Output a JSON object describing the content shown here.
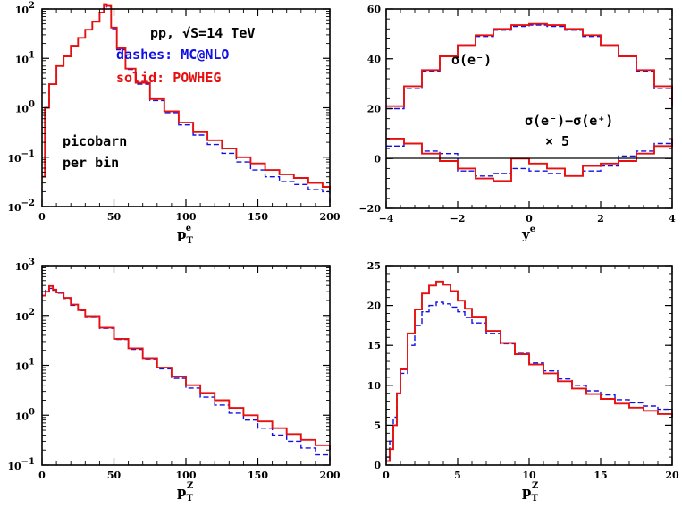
{
  "colors": {
    "mcatnlo": "#1010e6",
    "powheg": "#e61010",
    "axis": "#000000"
  },
  "panels": {
    "p1": {
      "xaxis": {
        "label": "p",
        "sub": "T",
        "sup": "e"
      },
      "legend": {
        "line1": "pp, √S=14 TeV",
        "line2": "dashes: MC@NLO",
        "line3": "solid: POWHEG"
      },
      "note": {
        "line1": "picobarn",
        "line2": "per bin"
      }
    },
    "p2": {
      "xaxis": {
        "label": "y",
        "sup": "e"
      },
      "ann1": "σ(e⁻)",
      "ann2": "σ(e⁻)−σ(e⁺)",
      "ann3": "× 5"
    },
    "p3": {
      "xaxis": {
        "label": "p",
        "sub": "T",
        "sup": "Z"
      }
    },
    "p4": {
      "xaxis": {
        "label": "p",
        "sub": "T",
        "sup": "Z"
      }
    }
  },
  "chart_data": [
    {
      "type": "line",
      "panel": "top-left",
      "xlabel": "p_T^e",
      "xlim": [
        0,
        200
      ],
      "ylim": [
        0.01,
        100
      ],
      "yscale": "log",
      "xticks": [
        0,
        50,
        100,
        150,
        200
      ],
      "ytick_labels": [
        {
          "v": 0.01,
          "base": "10",
          "exp": "−2"
        },
        {
          "v": 0.1,
          "base": "10",
          "exp": "−1"
        },
        {
          "v": 1,
          "base": "10",
          "exp": "0"
        },
        {
          "v": 10,
          "base": "10",
          "exp": "1"
        },
        {
          "v": 100,
          "base": "10",
          "exp": "2"
        }
      ],
      "series": [
        {
          "name": "MC@NLO",
          "style": "dashed",
          "x": [
            0,
            2,
            5,
            10,
            15,
            20,
            25,
            30,
            35,
            40,
            43,
            45,
            48,
            52,
            58,
            65,
            75,
            85,
            95,
            105,
            115,
            125,
            135,
            145,
            155,
            165,
            175,
            185,
            195,
            200
          ],
          "y": [
            0.04,
            1.0,
            3,
            7,
            11,
            18,
            26,
            38,
            55,
            85,
            120,
            110,
            40,
            15,
            6,
            3,
            1.4,
            0.8,
            0.45,
            0.28,
            0.18,
            0.12,
            0.08,
            0.055,
            0.04,
            0.032,
            0.028,
            0.022,
            0.02,
            0.012
          ]
        },
        {
          "name": "POWHEG",
          "style": "solid",
          "x": [
            0,
            2,
            5,
            10,
            15,
            20,
            25,
            30,
            35,
            40,
            43,
            45,
            48,
            52,
            58,
            65,
            75,
            85,
            95,
            105,
            115,
            125,
            135,
            145,
            155,
            165,
            175,
            185,
            195,
            200
          ],
          "y": [
            0.04,
            1.0,
            3,
            7,
            11,
            18,
            26,
            38,
            55,
            85,
            125,
            115,
            42,
            16,
            6.2,
            3.2,
            1.5,
            0.85,
            0.5,
            0.32,
            0.22,
            0.15,
            0.1,
            0.075,
            0.055,
            0.045,
            0.038,
            0.03,
            0.025,
            0.022
          ]
        }
      ]
    },
    {
      "type": "line",
      "panel": "top-right",
      "xlabel": "y^e",
      "xlim": [
        -4,
        4
      ],
      "ylim": [
        -20,
        60
      ],
      "xticks": [
        -4,
        -2,
        0,
        2,
        4
      ],
      "yticks": [
        -20,
        0,
        20,
        40,
        60
      ],
      "xtick_labels": [
        "−4",
        "−2",
        "0",
        "2",
        "4"
      ],
      "ytick_labels": [
        "−20",
        "0",
        "20",
        "40",
        "60"
      ],
      "hline": 0,
      "series": [
        {
          "name": "MC@NLO",
          "style": "dashed",
          "quantity": "σ(e⁻)",
          "x": [
            -4,
            -3.5,
            -3,
            -2.5,
            -2,
            -1.5,
            -1,
            -0.5,
            0,
            0.5,
            1,
            1.5,
            2,
            2.5,
            3,
            3.5,
            4
          ],
          "y": [
            20,
            28,
            35,
            41,
            45.5,
            49,
            51.5,
            53,
            53.5,
            53,
            51.5,
            49,
            45.5,
            41,
            35,
            28,
            20
          ]
        },
        {
          "name": "POWHEG",
          "style": "solid",
          "quantity": "σ(e⁻)",
          "x": [
            -4,
            -3.5,
            -3,
            -2.5,
            -2,
            -1.5,
            -1,
            -0.5,
            0,
            0.5,
            1,
            1.5,
            2,
            2.5,
            3,
            3.5,
            4
          ],
          "y": [
            21,
            29,
            35.5,
            41,
            45.5,
            49.5,
            52,
            53.5,
            54,
            53.5,
            52,
            49.5,
            45.5,
            41,
            35.5,
            29,
            21
          ]
        },
        {
          "name": "MC@NLO",
          "style": "dashed",
          "quantity": "σ(e⁻)−σ(e⁺) × 5",
          "x": [
            -4,
            -3.5,
            -3,
            -2.5,
            -2,
            -1.5,
            -1,
            -0.5,
            0,
            0.5,
            1,
            1.5,
            2,
            2.5,
            3,
            3.5,
            4
          ],
          "y": [
            5,
            6,
            3,
            2,
            -5,
            -7,
            -6,
            -4,
            -5,
            -6,
            -7,
            -5,
            -3,
            1,
            3,
            6,
            5
          ]
        },
        {
          "name": "POWHEG",
          "style": "solid",
          "quantity": "σ(e⁻)−σ(e⁺) × 5",
          "x": [
            -4,
            -3.5,
            -3,
            -2.5,
            -2,
            -1.5,
            -1,
            -0.5,
            0,
            0.5,
            1,
            1.5,
            2,
            2.5,
            3,
            3.5,
            4
          ],
          "y": [
            8,
            6,
            2,
            -1,
            -4,
            -8,
            -9,
            0,
            -2,
            -4,
            -7,
            -3,
            -2,
            -1,
            2,
            5,
            8
          ]
        }
      ]
    },
    {
      "type": "line",
      "panel": "bottom-left",
      "xlabel": "p_T^Z",
      "xlim": [
        0,
        200
      ],
      "ylim": [
        0.1,
        1000
      ],
      "yscale": "log",
      "xticks": [
        0,
        50,
        100,
        150,
        200
      ],
      "ytick_labels": [
        {
          "v": 0.1,
          "base": "10",
          "exp": "−1"
        },
        {
          "v": 1,
          "base": "10",
          "exp": "0"
        },
        {
          "v": 10,
          "base": "10",
          "exp": "1"
        },
        {
          "v": 100,
          "base": "10",
          "exp": "2"
        },
        {
          "v": 1000,
          "base": "10",
          "exp": "3"
        }
      ],
      "series": [
        {
          "name": "MC@NLO",
          "style": "dashed",
          "x": [
            0,
            2.5,
            5,
            7.5,
            10,
            15,
            20,
            25,
            30,
            40,
            50,
            60,
            70,
            80,
            90,
            100,
            110,
            120,
            130,
            140,
            150,
            160,
            170,
            180,
            190,
            200
          ],
          "y": [
            300,
            320,
            350,
            320,
            280,
            220,
            160,
            125,
            95,
            55,
            33,
            21,
            13.5,
            8.5,
            5.5,
            3.5,
            2.3,
            1.6,
            1.1,
            0.8,
            0.55,
            0.4,
            0.3,
            0.22,
            0.16,
            0.12
          ]
        },
        {
          "name": "POWHEG",
          "style": "solid",
          "x": [
            0,
            2.5,
            5,
            7.5,
            10,
            15,
            20,
            25,
            30,
            40,
            50,
            60,
            70,
            80,
            90,
            100,
            110,
            120,
            130,
            140,
            150,
            160,
            170,
            180,
            190,
            200
          ],
          "y": [
            250,
            300,
            390,
            330,
            290,
            225,
            165,
            128,
            97,
            57,
            34,
            22,
            14,
            9,
            6,
            4,
            2.8,
            2,
            1.4,
            1,
            0.75,
            0.55,
            0.42,
            0.32,
            0.25,
            0.2
          ]
        }
      ]
    },
    {
      "type": "line",
      "panel": "bottom-right",
      "xlabel": "p_T^Z",
      "xlim": [
        0,
        20
      ],
      "ylim": [
        0,
        25
      ],
      "xticks": [
        0,
        5,
        10,
        15,
        20
      ],
      "yticks": [
        0,
        5,
        10,
        15,
        20,
        25
      ],
      "series": [
        {
          "name": "MC@NLO",
          "style": "dashed",
          "x": [
            0,
            0.25,
            0.5,
            0.75,
            1,
            1.5,
            2,
            2.5,
            3,
            3.5,
            4,
            4.5,
            5,
            5.5,
            6,
            7,
            8,
            9,
            10,
            11,
            12,
            13,
            14,
            15,
            16,
            17,
            18,
            19,
            20
          ],
          "y": [
            1,
            3,
            6,
            9,
            11.5,
            15,
            17.5,
            19.2,
            20,
            20.4,
            20.2,
            19.8,
            19.2,
            18.5,
            17.8,
            16.5,
            15.2,
            14,
            12.8,
            11.8,
            10.8,
            10,
            9.3,
            8.8,
            8.2,
            7.8,
            7.4,
            7,
            6.5
          ]
        },
        {
          "name": "POWHEG",
          "style": "solid",
          "x": [
            0,
            0.25,
            0.5,
            0.75,
            1,
            1.5,
            2,
            2.5,
            3,
            3.5,
            4,
            4.5,
            5,
            5.5,
            6,
            7,
            8,
            9,
            10,
            11,
            12,
            13,
            14,
            15,
            16,
            17,
            18,
            19,
            20
          ],
          "y": [
            0.5,
            2,
            5,
            9,
            12,
            16.5,
            19.5,
            21.5,
            22.5,
            23,
            22.6,
            21.8,
            20.6,
            19.6,
            18.6,
            16.8,
            15.3,
            13.9,
            12.6,
            11.5,
            10.5,
            9.6,
            8.9,
            8.3,
            7.7,
            7.2,
            6.8,
            6.4,
            6
          ]
        }
      ]
    }
  ]
}
